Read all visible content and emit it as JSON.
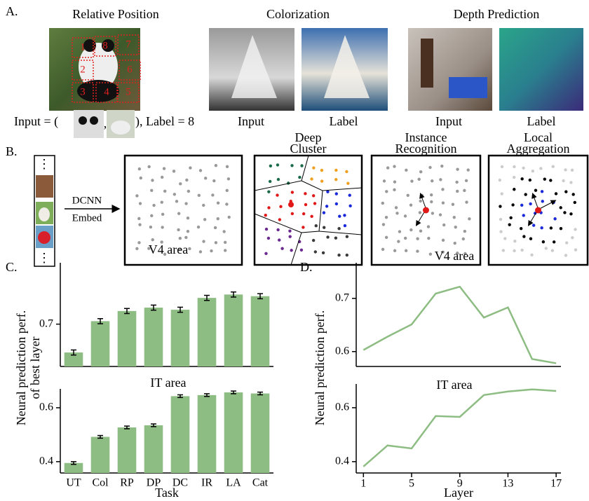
{
  "panel_a": {
    "label": "A.",
    "titles": [
      "Relative Position",
      "Colorization",
      "Depth Prediction"
    ],
    "patch_labels": [
      "1",
      "8",
      "7",
      "2",
      "6",
      "3",
      "4",
      "5"
    ],
    "caption": [
      "Input = (",
      ",",
      "), Label = 8"
    ],
    "image_labels": [
      "Input",
      "Label",
      "Input",
      "Label"
    ]
  },
  "panel_b": {
    "label": "B.",
    "ellipsis": [
      "⋮",
      "⋮"
    ],
    "arrow_labels": [
      "DCNN",
      "Embed"
    ],
    "method_titles": [
      [
        "Deep",
        "Cluster"
      ],
      [
        "Instance",
        "Recognition"
      ],
      [
        "Local",
        "Aggregation"
      ]
    ]
  },
  "panel_c_label": "C.",
  "panel_d_label": "D.",
  "chart_data": [
    {
      "type": "bar",
      "title": "V4 area",
      "ylabel": [
        "Neural prediction perf.",
        "of best layer"
      ],
      "categories": [
        null,
        null,
        null,
        null,
        null,
        null,
        null,
        null
      ],
      "values": [
        0.633,
        0.707,
        0.731,
        0.739,
        0.734,
        0.762,
        0.77,
        0.766
      ],
      "errors": [
        0.006,
        0.006,
        0.006,
        0.006,
        0.006,
        0.006,
        0.006,
        0.006
      ],
      "color": "#8dbd83",
      "ylim": [
        0.6,
        0.845
      ],
      "yticks": [
        0.7
      ]
    },
    {
      "type": "bar",
      "title": "IT area",
      "xlabel": "Task",
      "categories": [
        "UT",
        "Col",
        "RP",
        "DP",
        "DC",
        "IR",
        "LA",
        "Cat"
      ],
      "values": [
        0.395,
        0.492,
        0.527,
        0.535,
        0.643,
        0.647,
        0.657,
        0.653
      ],
      "errors": [
        0.005,
        0.005,
        0.005,
        0.005,
        0.005,
        0.005,
        0.005,
        0.005
      ],
      "color": "#8dbd83",
      "ylim": [
        0.358,
        0.67
      ],
      "yticks": [
        0.4,
        0.6
      ]
    },
    {
      "type": "line",
      "title": "V4 area",
      "ylabel": "Neural prediction perf.",
      "x": [
        1,
        3,
        5,
        7,
        9,
        11,
        13,
        15,
        17
      ],
      "values": [
        0.603,
        0.628,
        0.651,
        0.709,
        0.722,
        0.664,
        0.683,
        0.586,
        0.578
      ],
      "color": "#8dbd83",
      "xlim": [
        0.4,
        17.4
      ],
      "ylim": [
        0.572,
        0.767
      ],
      "yticks": [
        0.6,
        0.7
      ]
    },
    {
      "type": "line",
      "title": "IT area",
      "xlabel": "Layer",
      "x": [
        1,
        3,
        5,
        7,
        9,
        11,
        13,
        15,
        17
      ],
      "values": [
        0.382,
        0.46,
        0.449,
        0.569,
        0.566,
        0.647,
        0.66,
        0.668,
        0.662
      ],
      "color": "#8dbd83",
      "xlim": [
        0.4,
        17.4
      ],
      "xticks": [
        1,
        5,
        9,
        13,
        17
      ],
      "ylim": [
        0.358,
        0.688
      ],
      "yticks": [
        0.4,
        0.6
      ]
    }
  ]
}
